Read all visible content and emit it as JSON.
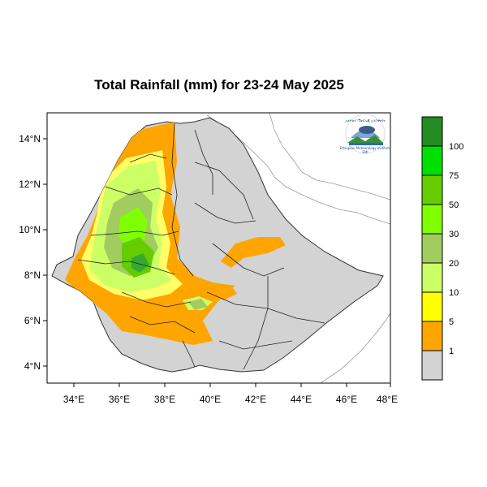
{
  "title": "Total Rainfall (mm) for 23-24 May 2025",
  "x_ticks": [
    "34°E",
    "36°E",
    "38°E",
    "40°E",
    "42°E",
    "44°E",
    "46°E",
    "48°E"
  ],
  "y_ticks": [
    "14°N",
    "12°N",
    "10°N",
    "8°N",
    "6°N",
    "4°N"
  ],
  "legend": {
    "labels": [
      "100",
      "75",
      "50",
      "30",
      "20",
      "10",
      "5",
      "1"
    ],
    "colors": [
      "#228b22",
      "#00e000",
      "#66cc00",
      "#7fff00",
      "#a0cc60",
      "#ccff66",
      "#ffff00",
      "#ffa500",
      "#d3d3d3"
    ]
  },
  "logo": {
    "top_text": "ኢትዮጵያ ሜትሮሎጂ ኢንስቲትዩት",
    "bottom_text": "Ethiopian Meteorology Institute",
    "abbr": "EMI"
  },
  "colors": {
    "land": "#d3d3d3",
    "light_rain": "#ffa500",
    "moderate_rain": "#ccff66",
    "heavy_rain": "#66cc00"
  }
}
